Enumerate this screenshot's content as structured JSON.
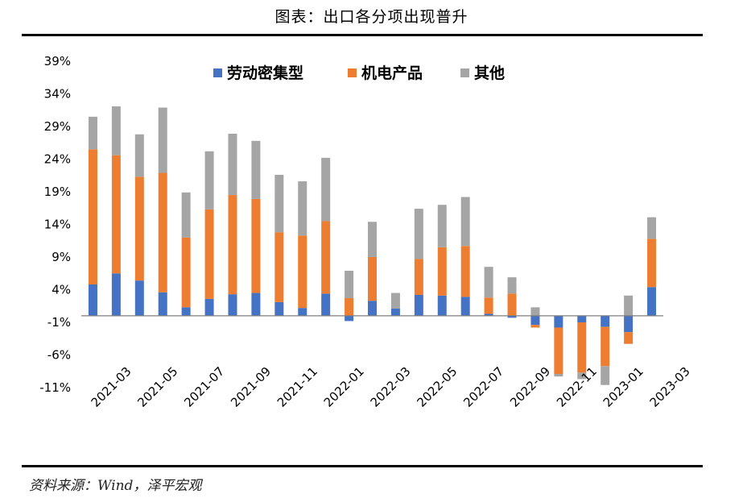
{
  "figure": {
    "title": "图表：出口各分项出现普升",
    "source": "资料来源：Wind，泽平宏观"
  },
  "colors": {
    "labor": "#4472C4",
    "electro": "#ED7D31",
    "other": "#A5A5A5"
  },
  "chart_data": {
    "type": "bar",
    "stacked": true,
    "categories": [
      "2021-03",
      "2021-04",
      "2021-05",
      "2021-06",
      "2021-07",
      "2021-08",
      "2021-09",
      "2021-10",
      "2021-11",
      "2021-12",
      "2022-01",
      "2022-02",
      "2022-03",
      "2022-04",
      "2022-05",
      "2022-06",
      "2022-07",
      "2022-08",
      "2022-09",
      "2022-10",
      "2022-11",
      "2022-12",
      "2023-01",
      "2023-02",
      "2023-03"
    ],
    "xtick_labels": [
      "2021-03",
      "2021-05",
      "2021-07",
      "2021-09",
      "2021-11",
      "2022-01",
      "2022-03",
      "2022-05",
      "2022-07",
      "2022-09",
      "2022-11",
      "2023-01",
      "2023-03"
    ],
    "series": [
      {
        "name": "劳动密集型",
        "color_key": "labor",
        "values": [
          4.8,
          6.5,
          5.4,
          3.6,
          1.3,
          2.6,
          3.3,
          3.5,
          2.1,
          1.2,
          3.4,
          -0.8,
          2.3,
          1.1,
          3.2,
          3.1,
          2.9,
          0.3,
          -0.3,
          -1.4,
          -1.8,
          -1.0,
          -1.7,
          -2.5,
          4.4
        ]
      },
      {
        "name": "机电产品",
        "color_key": "electro",
        "values": [
          20.7,
          18.1,
          15.9,
          18.3,
          10.7,
          13.7,
          15.2,
          14.4,
          10.7,
          11.1,
          11.1,
          2.7,
          6.7,
          0.0,
          5.5,
          7.4,
          7.8,
          2.5,
          3.4,
          -0.4,
          -7.1,
          -7.7,
          -6.0,
          -1.8,
          7.4
        ]
      },
      {
        "name": "其他",
        "color_key": "other",
        "values": [
          5.0,
          7.5,
          6.5,
          10.0,
          6.9,
          8.9,
          9.4,
          8.9,
          8.8,
          8.3,
          9.7,
          4.2,
          5.4,
          2.4,
          7.7,
          6.5,
          7.5,
          4.7,
          2.5,
          1.3,
          -0.4,
          -1.0,
          -2.9,
          3.1,
          3.3
        ]
      }
    ],
    "ylim": [
      -11,
      39
    ],
    "yticks": [
      -11,
      -6,
      -1,
      4,
      9,
      14,
      19,
      24,
      29,
      34,
      39
    ],
    "yaxis_format": "percent",
    "legend_position": "top-center",
    "grid": false
  }
}
